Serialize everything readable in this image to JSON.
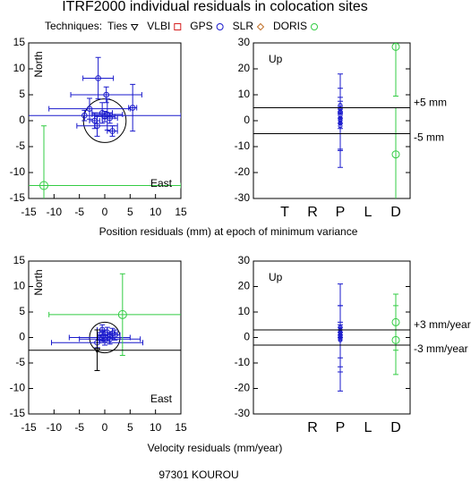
{
  "title": "ITRF2000 individual residuals in colocation sites",
  "legend": {
    "title": "Techniques:",
    "entries": [
      {
        "name": "Ties",
        "color": "#000000",
        "marker": "triangle-down"
      },
      {
        "name": "VLBI",
        "color": "#d62020",
        "marker": "square"
      },
      {
        "name": "GPS",
        "color": "#1a1acc",
        "marker": "circle"
      },
      {
        "name": "SLR",
        "color": "#c07028",
        "marker": "diamond"
      },
      {
        "name": "DORIS",
        "color": "#33cc44",
        "marker": "circle"
      }
    ]
  },
  "position_label": "Position residuals (mm) at epoch of minimum variance",
  "velocity_label": "Velocity residuals (mm/year)",
  "footer": "97301 KOUROU",
  "chart_data": [
    {
      "type": "scatter",
      "annotations": [
        "North",
        "East"
      ],
      "xlim": [
        -15,
        15
      ],
      "ylim": [
        -15,
        15
      ],
      "xticks": [
        -15,
        -10,
        -5,
        0,
        5,
        10,
        15
      ],
      "yticks": [
        -15,
        -10,
        -5,
        0,
        5,
        10,
        15
      ],
      "circle_radius": 4.2,
      "series": [
        {
          "name": "GPS",
          "color": "#1a1acc",
          "marker": "circle",
          "x": [
            -1.3,
            0.3,
            -4,
            -3,
            5.5,
            -0.5,
            0,
            1,
            -1.5,
            0.5,
            -2,
            1.5
          ],
          "values": [
            8.2,
            5,
            1,
            2.3,
            2.5,
            1.5,
            0.8,
            0.5,
            -1,
            1.2,
            0,
            -2
          ],
          "xerr": [
            3,
            7,
            19,
            8,
            0.8,
            2,
            2,
            1.5,
            4,
            3,
            1,
            1
          ],
          "yerr": [
            4,
            1.5,
            1,
            2,
            4.5,
            2,
            1,
            1,
            2,
            3,
            1.5,
            1
          ]
        },
        {
          "name": "DORIS",
          "color": "#33cc44",
          "marker": "circle",
          "x": [
            -12
          ],
          "values": [
            -12.5
          ],
          "xerr": [
            27
          ],
          "yerr": [
            11.5
          ]
        }
      ]
    },
    {
      "type": "errorbar",
      "annotations": [
        "Up"
      ],
      "categories": [
        "T",
        "R",
        "P",
        "L",
        "D"
      ],
      "category_colors": [
        "#000000",
        "#d62020",
        "#1a1acc",
        "#c07028",
        "#33cc44"
      ],
      "ylim": [
        -30,
        30
      ],
      "yticks": [
        -30,
        -20,
        -10,
        0,
        10,
        20,
        30
      ],
      "values": [
        [],
        [],
        [
          6,
          4.5,
          3.5,
          2,
          1,
          0,
          -1,
          -2,
          0.5
        ],
        [],
        [
          28.5,
          -13
        ]
      ],
      "errors": [
        [],
        [],
        [
          1.5,
          1,
          1,
          1,
          2,
          18,
          10,
          1,
          12
        ],
        [],
        [
          19,
          18
        ]
      ],
      "reference_lines": [
        {
          "value": 5,
          "label": "+5 mm"
        },
        {
          "value": -5,
          "label": "-5 mm"
        }
      ]
    },
    {
      "type": "scatter",
      "annotations": [
        "North",
        "East"
      ],
      "xlim": [
        -15,
        15
      ],
      "ylim": [
        -15,
        15
      ],
      "xticks": [
        -15,
        -10,
        -5,
        0,
        5,
        10,
        15
      ],
      "yticks": [
        -15,
        -10,
        -5,
        0,
        5,
        10,
        15
      ],
      "circle_radius": 3,
      "series": [
        {
          "name": "GPS",
          "color": "#1a1acc",
          "marker": "circle",
          "x": [
            -0.5,
            0.5,
            1.5,
            -1,
            0,
            -1.5,
            1,
            2,
            -0.3
          ],
          "values": [
            1.5,
            1,
            0.8,
            0,
            -0.5,
            -1,
            -0.3,
            0.5,
            0.3
          ],
          "xerr": [
            1,
            1,
            1,
            6,
            1,
            9,
            6,
            1,
            1
          ],
          "yerr": [
            1,
            1,
            1,
            1,
            1,
            1,
            1,
            1,
            1
          ]
        },
        {
          "name": "DORIS",
          "color": "#33cc44",
          "marker": "circle",
          "x": [
            3.5
          ],
          "values": [
            4.5
          ],
          "xerr": [
            14.5
          ],
          "yerr": [
            8
          ]
        },
        {
          "name": "Ties",
          "color": "#000000",
          "marker": "triangle-down",
          "x": [
            -1.5
          ],
          "values": [
            -2.5
          ],
          "xerr": [
            20
          ],
          "yerr": [
            4
          ]
        }
      ]
    },
    {
      "type": "errorbar",
      "annotations": [
        "Up"
      ],
      "categories": [
        null,
        "R",
        "P",
        "L",
        "D"
      ],
      "category_colors": [
        "#000000",
        "#d62020",
        "#1a1acc",
        "#c07028",
        "#33cc44"
      ],
      "ylim": [
        -30,
        30
      ],
      "yticks": [
        -30,
        -20,
        -10,
        0,
        10,
        20,
        30
      ],
      "values": [
        [],
        [],
        [
          4,
          3,
          2,
          1,
          0,
          -1,
          0.5,
          -0.5
        ],
        [],
        [
          6,
          -1
        ]
      ],
      "errors": [
        [],
        [],
        [
          1,
          1,
          1,
          1,
          21,
          7,
          12,
          13
        ],
        [],
        [
          11,
          13.5
        ]
      ],
      "reference_lines": [
        {
          "value": 3,
          "label": "+3 mm/year"
        },
        {
          "value": -3,
          "label": "-3 mm/year"
        }
      ]
    }
  ]
}
